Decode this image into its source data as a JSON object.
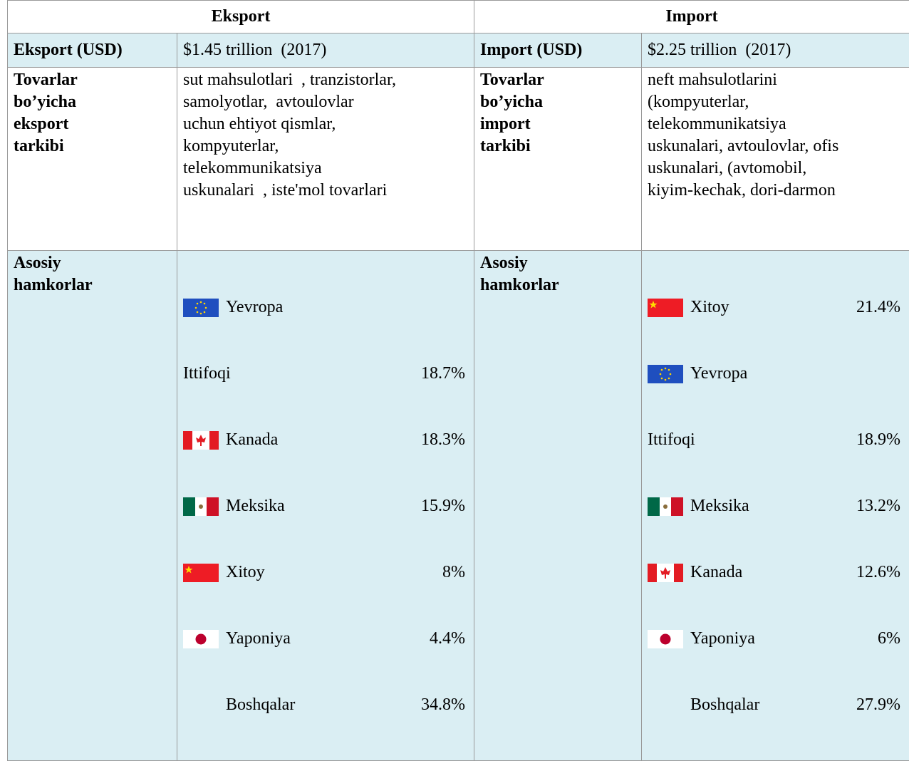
{
  "table": {
    "header": [
      "Eksport",
      "Import"
    ],
    "value_row": [
      "Eksport (USD)",
      "$1.45 trillion  (2017)",
      "Import (USD)",
      "$2.25 trillion  (2017)"
    ],
    "composition_row": [
      [
        "Tovarlar",
        "bo’yicha",
        "eksport",
        "tarkibi"
      ],
      [
        "sut mahsulotlari  , tranzistorlar,",
        "samolyotlar,  avtoulovlar",
        "uchun ehtiyot qismlar,",
        "kompyuterlar,",
        "telekommunikatsiya",
        "uskunalari  , iste'mol tovarlari"
      ],
      [
        "Tovarlar",
        "bo’yicha",
        "import",
        "tarkibi"
      ],
      [
        "neft mahsulotlarini",
        "(kompyuterlar,",
        "telekommunikatsiya",
        "uskunalari, avtoulovlar, ofis",
        "uskunalari, (avtomobil,",
        "kiyim-kechak, dori-darmon"
      ]
    ],
    "partners_row": {
      "export_label": [
        "Asosiy",
        "hamkorlar"
      ],
      "export": [
        {
          "name": "Yevropa"
        },
        {
          "name": "Ittifoqi",
          "share": "18.7%"
        },
        {
          "name": "Kanada",
          "share": "18.3%"
        },
        {
          "name": "Meksika",
          "share": "15.9%"
        },
        {
          "name": "Xitoy",
          "share": "8%"
        },
        {
          "name": "Yaponiya",
          "share": "4.4%"
        },
        {
          "name": "Boshqalar",
          "share": "34.8%"
        }
      ],
      "import_label": [
        "Asosiy",
        "hamkorlar"
      ],
      "import": [
        {
          "name": "Xitoy",
          "share": "21.4%"
        },
        {
          "name": "Yevropa"
        },
        {
          "name": "Ittifoqi",
          "share": "18.9%"
        },
        {
          "name": "Meksika",
          "share": "13.2%"
        },
        {
          "name": "Kanada",
          "share": "12.6%"
        },
        {
          "name": "Yaponiya",
          "share": "6%"
        },
        {
          "name": "Boshqalar",
          "share": "27.9%"
        }
      ]
    }
  }
}
